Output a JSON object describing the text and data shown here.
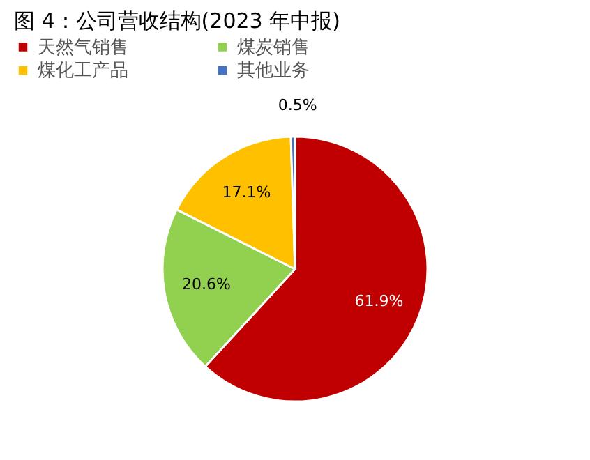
{
  "chart_data": {
    "type": "pie",
    "title": "图 4：公司营收结构(2023 年中报)",
    "categories": [
      "天然气销售",
      "煤炭销售",
      "煤化工产品",
      "其他业务"
    ],
    "values": [
      61.9,
      20.6,
      17.1,
      0.5
    ],
    "colors": [
      "#c00000",
      "#92d050",
      "#ffc000",
      "#4472c4"
    ],
    "value_labels": [
      "61.9%",
      "20.6%",
      "17.1%",
      "0.5%"
    ],
    "legend": "top"
  }
}
